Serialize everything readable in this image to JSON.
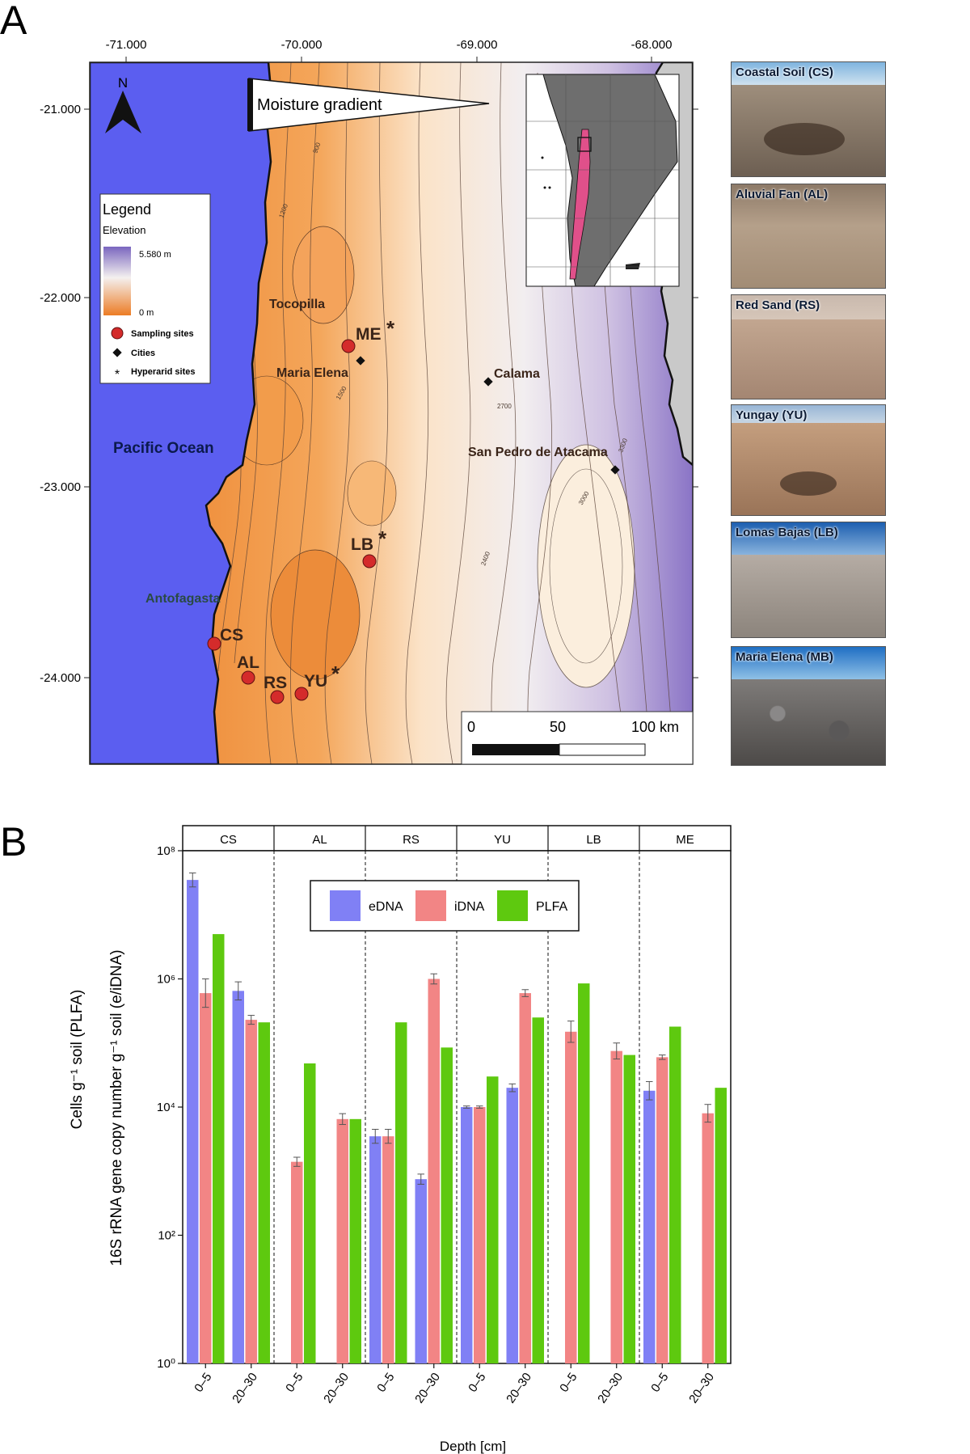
{
  "panel_a": {
    "label": "A",
    "lon_ticks": [
      "-71.000",
      "-70.000",
      "-69.000",
      "-68.000"
    ],
    "lat_ticks": [
      "-21.000",
      "-22.000",
      "-23.000",
      "-24.000"
    ],
    "north": "N",
    "moisture_gradient": "Moisture gradient",
    "legend": {
      "title": "Legend",
      "elevation_label": "Elevation",
      "max": "5.580 m",
      "min": "0 m",
      "items": [
        "Sampling sites",
        "Cities",
        "Hyperarid sites"
      ]
    },
    "ocean_label": "Pacific Ocean",
    "cities": [
      "Tocopilla",
      "Maria Elena",
      "Calama",
      "San Pedro de Atacama",
      "Antofagasta"
    ],
    "sites": [
      "ME",
      "LB",
      "CS",
      "AL",
      "RS",
      "YU"
    ],
    "hyperarid_marker": "*",
    "scale_bar": {
      "zero": "0",
      "mid": "50",
      "end": "100 km"
    },
    "contour_labels": [
      "900",
      "1500",
      "2400",
      "2700",
      "3000",
      "3300",
      "1200"
    ],
    "photos": [
      "Coastal Soil (CS)",
      "Aluvial Fan (AL)",
      "Red Sand (RS)",
      "Yungay (YU)",
      "Lomas Bajas (LB)",
      "Maria Elena (MB)"
    ],
    "colors": {
      "ocean": "#5b5ef0",
      "low_elevation": "#e8782a",
      "mid_elevation": "#fbe7cf",
      "high_elevation": "#7e6bbf",
      "site_marker": "#d42b2b"
    }
  },
  "panel_b": {
    "label": "B"
  },
  "chart_data": {
    "type": "bar",
    "ylabel_line1": "Cells g⁻¹ soil (PLFA)",
    "ylabel_line2": "16S rRNA gene copy number g⁻¹ soil (e/iDNA)",
    "xlabel": "Depth [cm]",
    "y_scale": "log10",
    "ylim": [
      1,
      100000000
    ],
    "y_tick_labels": [
      "10⁰",
      "10²",
      "10⁴",
      "10⁶",
      "10⁸"
    ],
    "y_tick_values": [
      1,
      100,
      10000,
      1000000,
      100000000
    ],
    "facets": [
      "CS",
      "AL",
      "RS",
      "YU",
      "LB",
      "ME"
    ],
    "depths": [
      "0–5",
      "20–30"
    ],
    "legend": [
      "eDNA",
      "iDNA",
      "PLFA"
    ],
    "colors": {
      "eDNA": "#8080f5",
      "iDNA": "#f28585",
      "PLFA": "#5ec90f"
    },
    "series": [
      {
        "name": "eDNA",
        "values": [
          [
            35000000,
            650000
          ],
          [
            null,
            null
          ],
          [
            3500,
            750
          ],
          [
            10000,
            20000
          ],
          [
            null,
            null
          ],
          [
            18000,
            null
          ]
        ],
        "error": [
          [
            45000000,
            900000
          ],
          [
            null,
            null
          ],
          [
            4500,
            900
          ],
          [
            10400,
            23000
          ],
          [
            null,
            null
          ],
          [
            25000,
            null
          ]
        ]
      },
      {
        "name": "iDNA",
        "values": [
          [
            600000,
            230000
          ],
          [
            1400,
            6500
          ],
          [
            3500,
            1000000
          ],
          [
            10000,
            600000
          ],
          [
            150000,
            75000
          ],
          [
            60000,
            8000
          ]
        ],
        "error": [
          [
            1000000,
            270000
          ],
          [
            1650,
            7900
          ],
          [
            4500,
            1200000
          ],
          [
            10400,
            680000
          ],
          [
            220000,
            100000
          ],
          [
            65000,
            11000
          ]
        ]
      },
      {
        "name": "PLFA",
        "values": [
          [
            5000000,
            210000
          ],
          [
            48000,
            6500
          ],
          [
            210000,
            85000
          ],
          [
            30000,
            250000
          ],
          [
            850000,
            65000
          ],
          [
            180000,
            20000
          ]
        ],
        "error": [
          [
            null,
            null
          ],
          [
            null,
            null
          ],
          [
            null,
            null
          ],
          [
            null,
            null
          ],
          [
            null,
            null
          ],
          [
            null,
            null
          ]
        ]
      }
    ]
  }
}
